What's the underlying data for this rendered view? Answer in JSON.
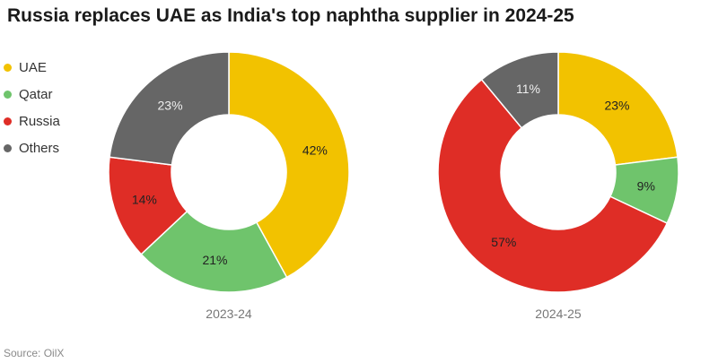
{
  "title": "Russia replaces UAE as India's top naphtha supplier in 2024-25",
  "source": "Source: OilX",
  "legend": [
    {
      "label": "UAE",
      "color": "#f2c200"
    },
    {
      "label": "Qatar",
      "color": "#6fc46c"
    },
    {
      "label": "Russia",
      "color": "#df2d26"
    },
    {
      "label": "Others",
      "color": "#666666"
    }
  ],
  "chart_data": [
    {
      "type": "pie",
      "style": "donut",
      "subtitle": "2023-24",
      "categories": [
        "UAE",
        "Qatar",
        "Russia",
        "Others"
      ],
      "values": [
        42,
        21,
        14,
        23
      ],
      "labels": [
        "42%",
        "21%",
        "14%",
        "23%"
      ],
      "colors": [
        "#f2c200",
        "#6fc46c",
        "#df2d26",
        "#666666"
      ]
    },
    {
      "type": "pie",
      "style": "donut",
      "subtitle": "2024-25",
      "categories": [
        "UAE",
        "Qatar",
        "Russia",
        "Others"
      ],
      "values": [
        23,
        9,
        57,
        11
      ],
      "labels": [
        "23%",
        "9%",
        "57%",
        "11%"
      ],
      "colors": [
        "#f2c200",
        "#6fc46c",
        "#df2d26",
        "#666666"
      ]
    }
  ]
}
